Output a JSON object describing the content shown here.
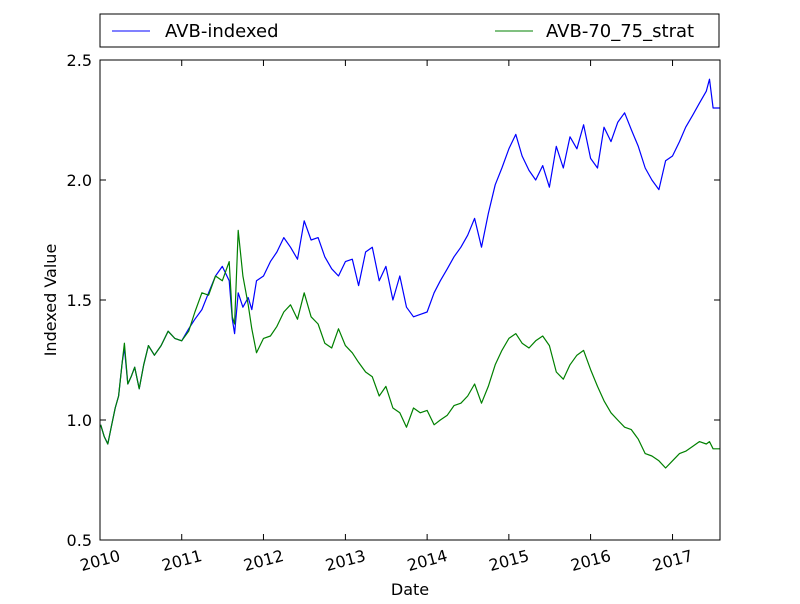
{
  "chart_data": {
    "type": "line",
    "title": "",
    "xlabel": "Date",
    "ylabel": "Indexed Value",
    "xlim": [
      "2010-01-01",
      "2017-08-01"
    ],
    "ylim": [
      0.5,
      2.5
    ],
    "x_ticks": [
      "2010",
      "2011",
      "2012",
      "2013",
      "2014",
      "2015",
      "2016",
      "2017"
    ],
    "y_ticks": [
      "0.5",
      "1.0",
      "1.5",
      "2.0",
      "2.5"
    ],
    "grid": false,
    "legend": {
      "placement": "top, above plot",
      "entries": [
        "AVB-indexed",
        "AVB-70_75_strat"
      ]
    },
    "series": [
      {
        "name": "AVB-indexed",
        "color": "#0000ff",
        "points": [
          [
            "2010-01-04",
            0.98
          ],
          [
            "2010-01-20",
            0.93
          ],
          [
            "2010-02-05",
            0.9
          ],
          [
            "2010-02-20",
            0.97
          ],
          [
            "2010-03-10",
            1.05
          ],
          [
            "2010-03-25",
            1.1
          ],
          [
            "2010-04-10",
            1.24
          ],
          [
            "2010-04-20",
            1.3
          ],
          [
            "2010-05-05",
            1.15
          ],
          [
            "2010-05-20",
            1.18
          ],
          [
            "2010-06-05",
            1.22
          ],
          [
            "2010-06-25",
            1.13
          ],
          [
            "2010-07-15",
            1.23
          ],
          [
            "2010-08-05",
            1.31
          ],
          [
            "2010-09-01",
            1.27
          ],
          [
            "2010-10-01",
            1.31
          ],
          [
            "2010-11-01",
            1.37
          ],
          [
            "2010-12-01",
            1.34
          ],
          [
            "2011-01-01",
            1.33
          ],
          [
            "2011-02-01",
            1.38
          ],
          [
            "2011-03-01",
            1.42
          ],
          [
            "2011-04-01",
            1.46
          ],
          [
            "2011-05-01",
            1.53
          ],
          [
            "2011-06-01",
            1.6
          ],
          [
            "2011-07-01",
            1.64
          ],
          [
            "2011-08-01",
            1.58
          ],
          [
            "2011-08-15",
            1.42
          ],
          [
            "2011-08-25",
            1.36
          ],
          [
            "2011-09-10",
            1.53
          ],
          [
            "2011-10-01",
            1.47
          ],
          [
            "2011-10-25",
            1.51
          ],
          [
            "2011-11-10",
            1.46
          ],
          [
            "2011-12-01",
            1.58
          ],
          [
            "2012-01-01",
            1.6
          ],
          [
            "2012-02-01",
            1.66
          ],
          [
            "2012-03-01",
            1.7
          ],
          [
            "2012-04-01",
            1.76
          ],
          [
            "2012-05-01",
            1.72
          ],
          [
            "2012-06-01",
            1.67
          ],
          [
            "2012-07-01",
            1.83
          ],
          [
            "2012-08-01",
            1.75
          ],
          [
            "2012-09-01",
            1.76
          ],
          [
            "2012-10-01",
            1.68
          ],
          [
            "2012-11-01",
            1.63
          ],
          [
            "2012-12-01",
            1.6
          ],
          [
            "2013-01-01",
            1.66
          ],
          [
            "2013-02-01",
            1.67
          ],
          [
            "2013-03-01",
            1.56
          ],
          [
            "2013-04-01",
            1.7
          ],
          [
            "2013-05-01",
            1.72
          ],
          [
            "2013-06-01",
            1.58
          ],
          [
            "2013-07-01",
            1.64
          ],
          [
            "2013-08-01",
            1.5
          ],
          [
            "2013-09-01",
            1.6
          ],
          [
            "2013-10-01",
            1.47
          ],
          [
            "2013-11-01",
            1.43
          ],
          [
            "2013-12-01",
            1.44
          ],
          [
            "2014-01-01",
            1.45
          ],
          [
            "2014-02-01",
            1.53
          ],
          [
            "2014-03-01",
            1.58
          ],
          [
            "2014-04-01",
            1.63
          ],
          [
            "2014-05-01",
            1.68
          ],
          [
            "2014-06-01",
            1.72
          ],
          [
            "2014-07-01",
            1.77
          ],
          [
            "2014-08-01",
            1.84
          ],
          [
            "2014-09-01",
            1.72
          ],
          [
            "2014-10-01",
            1.86
          ],
          [
            "2014-11-01",
            1.98
          ],
          [
            "2014-12-01",
            2.05
          ],
          [
            "2015-01-01",
            2.13
          ],
          [
            "2015-02-01",
            2.19
          ],
          [
            "2015-03-01",
            2.1
          ],
          [
            "2015-04-01",
            2.04
          ],
          [
            "2015-05-01",
            2.0
          ],
          [
            "2015-06-01",
            2.06
          ],
          [
            "2015-07-01",
            1.97
          ],
          [
            "2015-08-01",
            2.14
          ],
          [
            "2015-09-01",
            2.05
          ],
          [
            "2015-10-01",
            2.18
          ],
          [
            "2015-11-01",
            2.13
          ],
          [
            "2015-12-01",
            2.23
          ],
          [
            "2016-01-01",
            2.09
          ],
          [
            "2016-02-01",
            2.05
          ],
          [
            "2016-03-01",
            2.22
          ],
          [
            "2016-04-01",
            2.16
          ],
          [
            "2016-05-01",
            2.24
          ],
          [
            "2016-06-01",
            2.28
          ],
          [
            "2016-07-01",
            2.21
          ],
          [
            "2016-08-01",
            2.14
          ],
          [
            "2016-09-01",
            2.05
          ],
          [
            "2016-10-01",
            2.0
          ],
          [
            "2016-11-01",
            1.96
          ],
          [
            "2016-12-01",
            2.08
          ],
          [
            "2017-01-01",
            2.1
          ],
          [
            "2017-02-01",
            2.16
          ],
          [
            "2017-03-01",
            2.22
          ],
          [
            "2017-04-01",
            2.27
          ],
          [
            "2017-05-01",
            2.32
          ],
          [
            "2017-06-01",
            2.37
          ],
          [
            "2017-06-15",
            2.42
          ],
          [
            "2017-07-01",
            2.3
          ],
          [
            "2017-08-01",
            2.3
          ]
        ]
      },
      {
        "name": "AVB-70_75_strat",
        "color": "#008000",
        "points": [
          [
            "2010-01-04",
            0.98
          ],
          [
            "2010-01-20",
            0.93
          ],
          [
            "2010-02-05",
            0.9
          ],
          [
            "2010-02-20",
            0.97
          ],
          [
            "2010-03-10",
            1.05
          ],
          [
            "2010-03-25",
            1.1
          ],
          [
            "2010-04-10",
            1.24
          ],
          [
            "2010-04-20",
            1.32
          ],
          [
            "2010-05-05",
            1.15
          ],
          [
            "2010-05-20",
            1.18
          ],
          [
            "2010-06-05",
            1.22
          ],
          [
            "2010-06-25",
            1.13
          ],
          [
            "2010-07-15",
            1.23
          ],
          [
            "2010-08-05",
            1.31
          ],
          [
            "2010-09-01",
            1.27
          ],
          [
            "2010-10-01",
            1.31
          ],
          [
            "2010-11-01",
            1.37
          ],
          [
            "2010-12-01",
            1.34
          ],
          [
            "2011-01-01",
            1.33
          ],
          [
            "2011-02-01",
            1.37
          ],
          [
            "2011-03-01",
            1.45
          ],
          [
            "2011-04-01",
            1.53
          ],
          [
            "2011-05-01",
            1.52
          ],
          [
            "2011-06-01",
            1.6
          ],
          [
            "2011-07-01",
            1.58
          ],
          [
            "2011-08-01",
            1.66
          ],
          [
            "2011-08-15",
            1.43
          ],
          [
            "2011-08-25",
            1.4
          ],
          [
            "2011-09-10",
            1.79
          ],
          [
            "2011-10-01",
            1.6
          ],
          [
            "2011-10-25",
            1.48
          ],
          [
            "2011-11-10",
            1.38
          ],
          [
            "2011-12-01",
            1.28
          ],
          [
            "2012-01-01",
            1.34
          ],
          [
            "2012-02-01",
            1.35
          ],
          [
            "2012-03-01",
            1.39
          ],
          [
            "2012-04-01",
            1.45
          ],
          [
            "2012-05-01",
            1.48
          ],
          [
            "2012-06-01",
            1.42
          ],
          [
            "2012-07-01",
            1.53
          ],
          [
            "2012-08-01",
            1.43
          ],
          [
            "2012-09-01",
            1.4
          ],
          [
            "2012-10-01",
            1.32
          ],
          [
            "2012-11-01",
            1.3
          ],
          [
            "2012-12-01",
            1.38
          ],
          [
            "2013-01-01",
            1.31
          ],
          [
            "2013-02-01",
            1.28
          ],
          [
            "2013-03-01",
            1.24
          ],
          [
            "2013-04-01",
            1.2
          ],
          [
            "2013-05-01",
            1.18
          ],
          [
            "2013-06-01",
            1.1
          ],
          [
            "2013-07-01",
            1.14
          ],
          [
            "2013-08-01",
            1.05
          ],
          [
            "2013-09-01",
            1.03
          ],
          [
            "2013-10-01",
            0.97
          ],
          [
            "2013-11-01",
            1.05
          ],
          [
            "2013-12-01",
            1.03
          ],
          [
            "2014-01-01",
            1.04
          ],
          [
            "2014-02-01",
            0.98
          ],
          [
            "2014-03-01",
            1.0
          ],
          [
            "2014-04-01",
            1.02
          ],
          [
            "2014-05-01",
            1.06
          ],
          [
            "2014-06-01",
            1.07
          ],
          [
            "2014-07-01",
            1.1
          ],
          [
            "2014-08-01",
            1.15
          ],
          [
            "2014-09-01",
            1.07
          ],
          [
            "2014-10-01",
            1.14
          ],
          [
            "2014-11-01",
            1.23
          ],
          [
            "2014-12-01",
            1.29
          ],
          [
            "2015-01-01",
            1.34
          ],
          [
            "2015-02-01",
            1.36
          ],
          [
            "2015-03-01",
            1.32
          ],
          [
            "2015-04-01",
            1.3
          ],
          [
            "2015-05-01",
            1.33
          ],
          [
            "2015-06-01",
            1.35
          ],
          [
            "2015-07-01",
            1.31
          ],
          [
            "2015-08-01",
            1.2
          ],
          [
            "2015-09-01",
            1.17
          ],
          [
            "2015-10-01",
            1.23
          ],
          [
            "2015-11-01",
            1.27
          ],
          [
            "2015-12-01",
            1.29
          ],
          [
            "2016-01-01",
            1.21
          ],
          [
            "2016-02-01",
            1.14
          ],
          [
            "2016-03-01",
            1.08
          ],
          [
            "2016-04-01",
            1.03
          ],
          [
            "2016-05-01",
            1.0
          ],
          [
            "2016-06-01",
            0.97
          ],
          [
            "2016-07-01",
            0.96
          ],
          [
            "2016-08-01",
            0.92
          ],
          [
            "2016-09-01",
            0.86
          ],
          [
            "2016-10-01",
            0.85
          ],
          [
            "2016-11-01",
            0.83
          ],
          [
            "2016-12-01",
            0.8
          ],
          [
            "2017-01-01",
            0.83
          ],
          [
            "2017-02-01",
            0.86
          ],
          [
            "2017-03-01",
            0.87
          ],
          [
            "2017-04-01",
            0.89
          ],
          [
            "2017-05-01",
            0.91
          ],
          [
            "2017-06-01",
            0.9
          ],
          [
            "2017-06-15",
            0.91
          ],
          [
            "2017-07-01",
            0.88
          ],
          [
            "2017-08-01",
            0.88
          ]
        ]
      }
    ]
  }
}
